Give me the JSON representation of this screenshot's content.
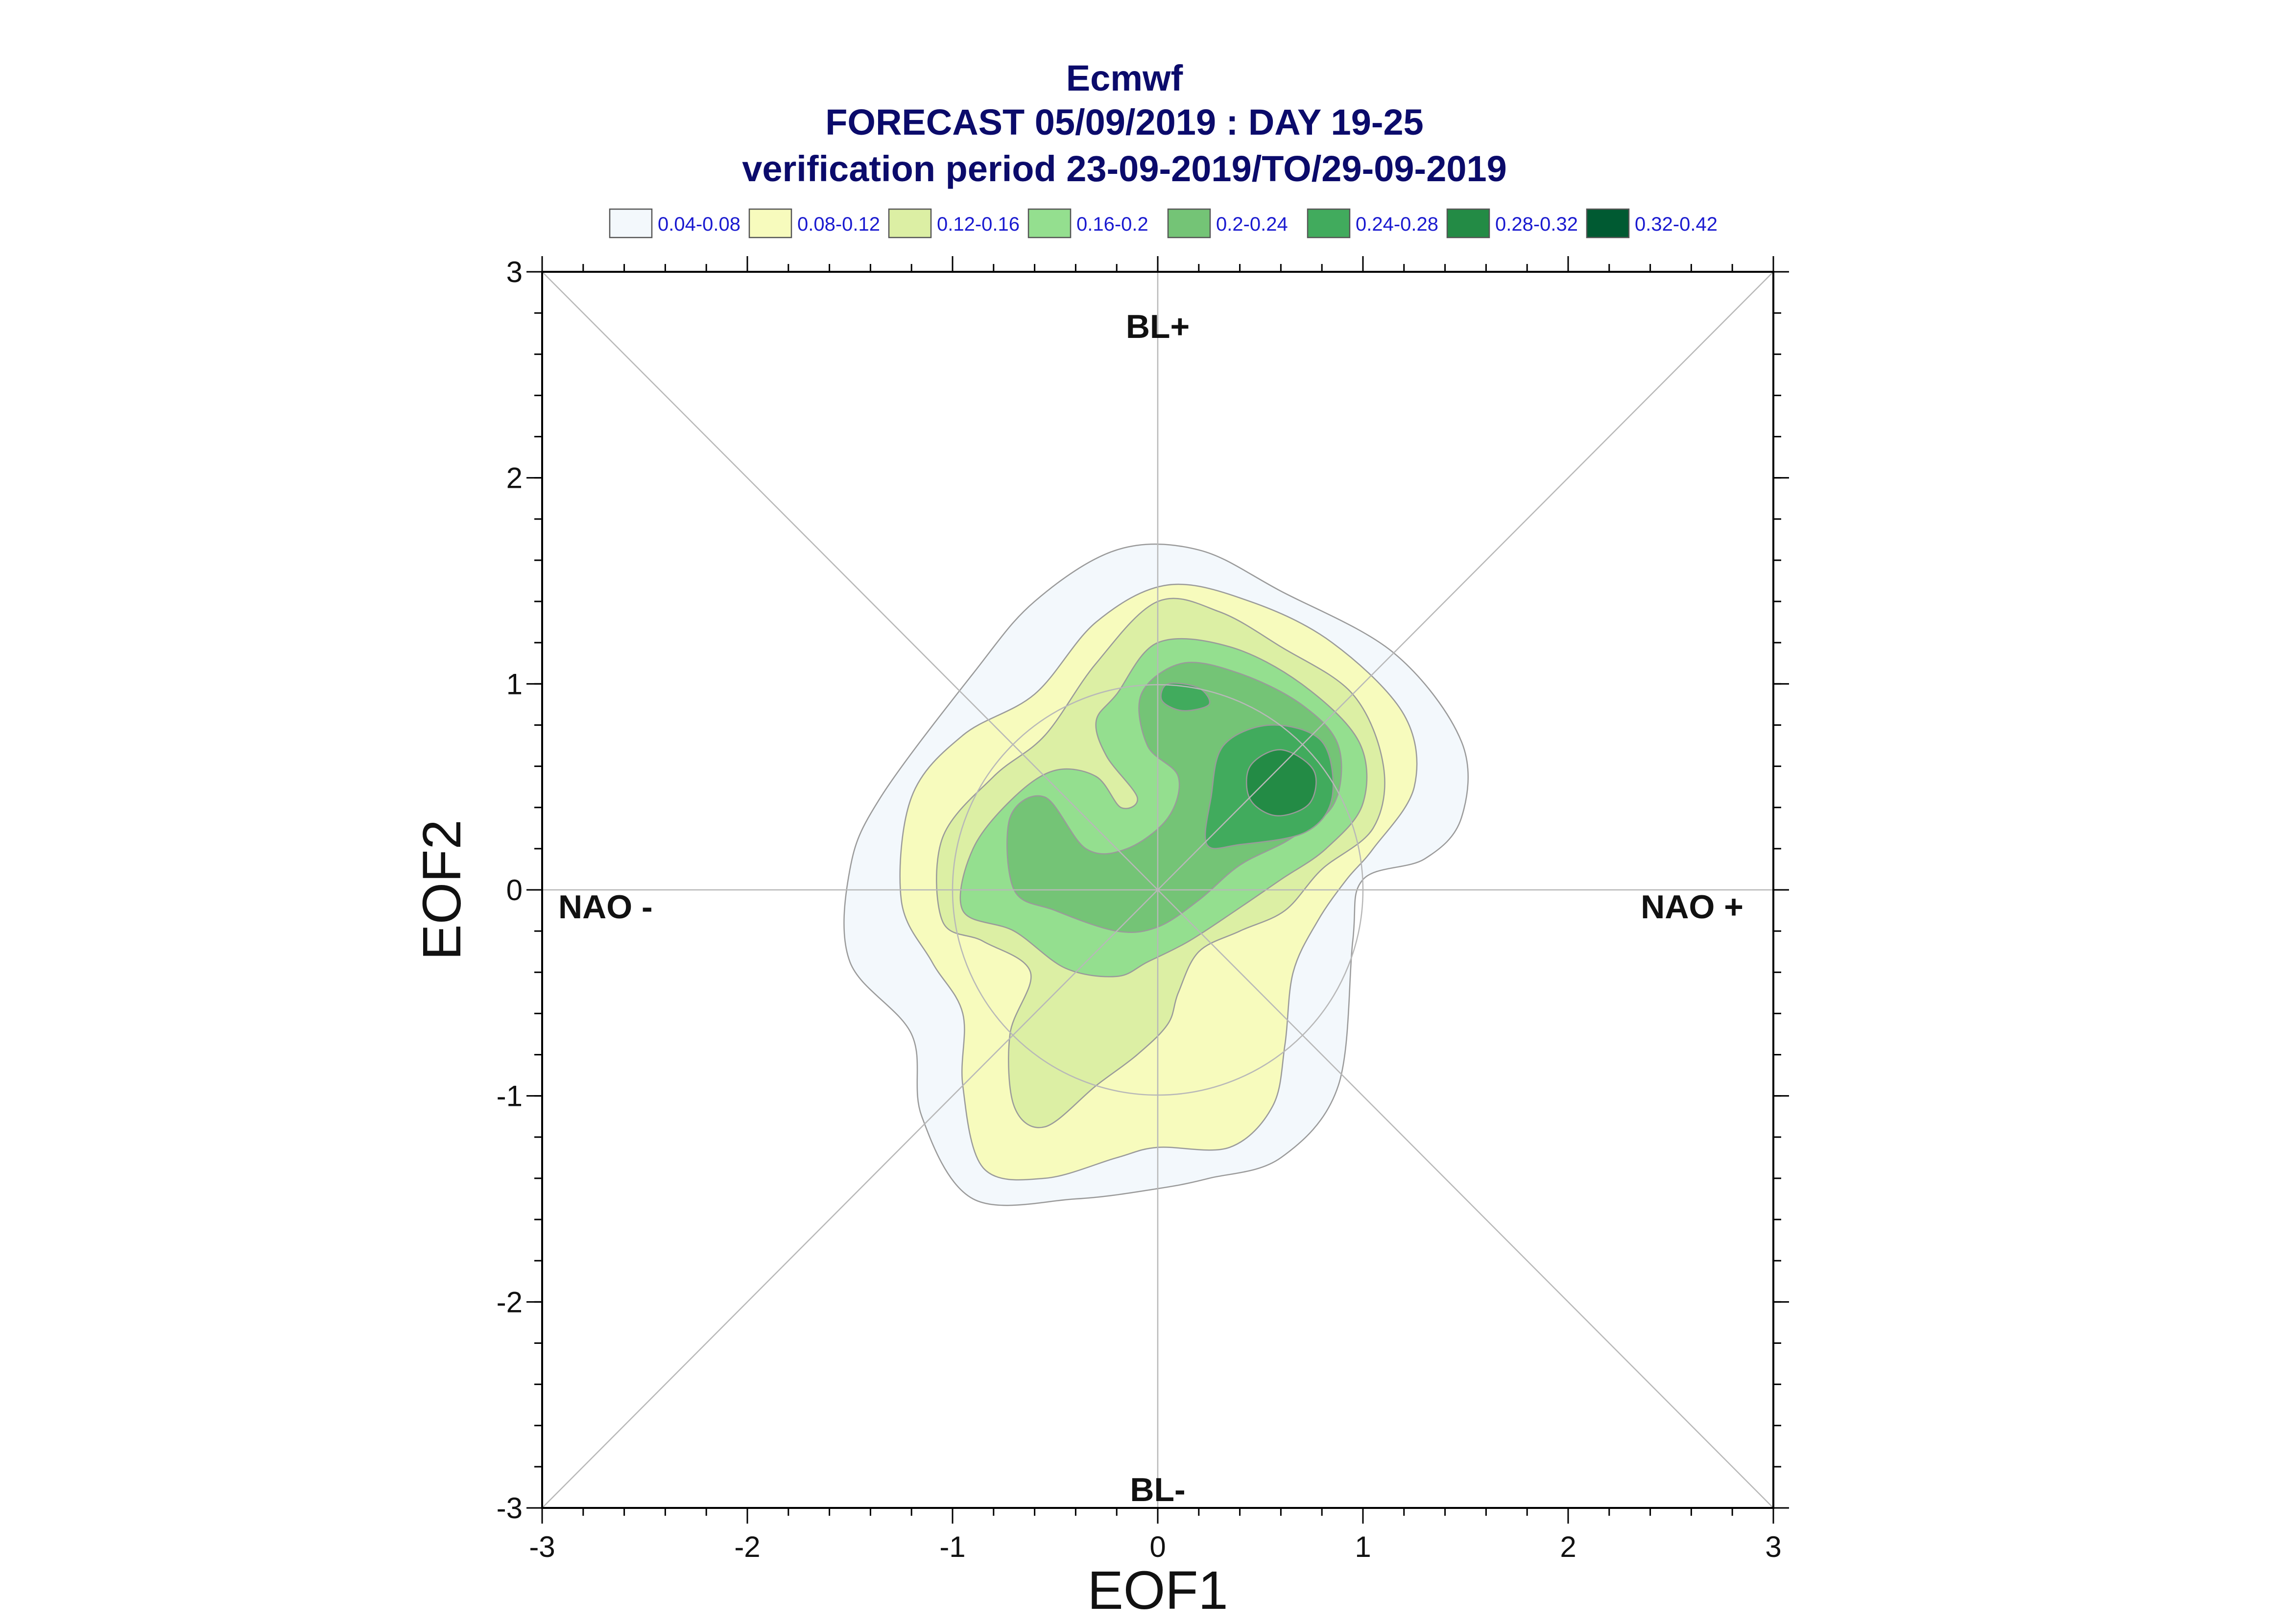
{
  "chart_data": {
    "type": "contour",
    "title": "Ecmwf",
    "subtitle_lines": [
      "FORECAST 05/09/2019 : DAY 19-25",
      "verification period 23-09-2019/TO/29-09-2019"
    ],
    "xlabel": "EOF1",
    "ylabel": "EOF2",
    "xlim": [
      -3,
      3
    ],
    "ylim": [
      -3,
      3
    ],
    "x_ticks": [
      "-3",
      "-2",
      "-1",
      "0",
      "1",
      "2",
      "3"
    ],
    "y_ticks": [
      "-3",
      "-2",
      "-1",
      "0",
      "1",
      "2",
      "3"
    ],
    "grid": false,
    "legend_position": "top",
    "region_labels": {
      "top": "BL+",
      "bottom": "BL-",
      "left": "NAO -",
      "right": "NAO +"
    },
    "reference_circle_radius": 1,
    "levels": [
      {
        "label": "0.04-0.08",
        "color": "#f3f8fc"
      },
      {
        "label": "0.08-0.12",
        "color": "#f7fbbd"
      },
      {
        "label": "0.12-0.16",
        "color": "#dcefa4"
      },
      {
        "label": "0.16-0.2",
        "color": "#94df8f"
      },
      {
        "label": "0.2-0.24",
        "color": "#74c476"
      },
      {
        "label": "0.24-0.28",
        "color": "#41ab5d"
      },
      {
        "label": "0.28-0.32",
        "color": "#238b45"
      },
      {
        "label": "0.32-0.42",
        "color": "#005a32"
      }
    ],
    "contours": [
      {
        "level": 0,
        "points": [
          [
            -0.9,
            1.05
          ],
          [
            -0.6,
            1.4
          ],
          [
            -0.2,
            1.65
          ],
          [
            0.2,
            1.65
          ],
          [
            0.6,
            1.45
          ],
          [
            1.15,
            1.15
          ],
          [
            1.48,
            0.72
          ],
          [
            1.48,
            0.35
          ],
          [
            1.3,
            0.15
          ],
          [
            1.0,
            0.05
          ],
          [
            0.95,
            -0.25
          ],
          [
            0.88,
            -0.95
          ],
          [
            0.6,
            -1.3
          ],
          [
            0.25,
            -1.4
          ],
          [
            0.0,
            -1.45
          ],
          [
            -0.4,
            -1.5
          ],
          [
            -0.9,
            -1.5
          ],
          [
            -1.15,
            -1.1
          ],
          [
            -1.2,
            -0.7
          ],
          [
            -1.5,
            -0.35
          ],
          [
            -1.5,
            0.1
          ],
          [
            -1.35,
            0.45
          ]
        ]
      },
      {
        "level": 1,
        "points": [
          [
            -0.6,
            0.95
          ],
          [
            -0.3,
            1.3
          ],
          [
            0.05,
            1.48
          ],
          [
            0.45,
            1.4
          ],
          [
            0.85,
            1.2
          ],
          [
            1.2,
            0.85
          ],
          [
            1.25,
            0.5
          ],
          [
            1.05,
            0.2
          ],
          [
            0.92,
            0.05
          ],
          [
            0.78,
            -0.15
          ],
          [
            0.66,
            -0.4
          ],
          [
            0.62,
            -0.75
          ],
          [
            0.56,
            -1.05
          ],
          [
            0.35,
            -1.25
          ],
          [
            0.0,
            -1.25
          ],
          [
            -0.2,
            -1.3
          ],
          [
            -0.55,
            -1.4
          ],
          [
            -0.85,
            -1.35
          ],
          [
            -0.95,
            -0.95
          ],
          [
            -0.95,
            -0.6
          ],
          [
            -1.1,
            -0.35
          ],
          [
            -1.25,
            -0.05
          ],
          [
            -1.2,
            0.45
          ],
          [
            -0.95,
            0.75
          ]
        ]
      },
      {
        "level": 2,
        "points": [
          [
            -0.3,
            1.1
          ],
          [
            0.0,
            1.4
          ],
          [
            0.3,
            1.35
          ],
          [
            0.6,
            1.18
          ],
          [
            0.95,
            0.95
          ],
          [
            1.1,
            0.6
          ],
          [
            1.05,
            0.3
          ],
          [
            0.8,
            0.1
          ],
          [
            0.62,
            -0.1
          ],
          [
            0.4,
            -0.2
          ],
          [
            0.2,
            -0.3
          ],
          [
            0.1,
            -0.5
          ],
          [
            0.05,
            -0.65
          ],
          [
            -0.1,
            -0.8
          ],
          [
            -0.3,
            -0.95
          ],
          [
            -0.55,
            -1.15
          ],
          [
            -0.7,
            -1.05
          ],
          [
            -0.72,
            -0.7
          ],
          [
            -0.62,
            -0.4
          ],
          [
            -0.85,
            -0.25
          ],
          [
            -1.05,
            -0.15
          ],
          [
            -1.05,
            0.25
          ],
          [
            -0.8,
            0.55
          ],
          [
            -0.55,
            0.75
          ]
        ]
      },
      {
        "level": 3,
        "points": [
          [
            -0.2,
            0.95
          ],
          [
            0.0,
            1.2
          ],
          [
            0.35,
            1.18
          ],
          [
            0.7,
            1.0
          ],
          [
            0.98,
            0.72
          ],
          [
            1.0,
            0.42
          ],
          [
            0.82,
            0.2
          ],
          [
            0.6,
            0.05
          ],
          [
            0.38,
            -0.1
          ],
          [
            0.15,
            -0.25
          ],
          [
            -0.05,
            -0.35
          ],
          [
            -0.2,
            -0.42
          ],
          [
            -0.45,
            -0.38
          ],
          [
            -0.7,
            -0.2
          ],
          [
            -0.95,
            -0.1
          ],
          [
            -0.9,
            0.2
          ],
          [
            -0.7,
            0.45
          ],
          [
            -0.5,
            0.58
          ],
          [
            -0.3,
            0.55
          ],
          [
            -0.18,
            0.4
          ],
          [
            -0.1,
            0.45
          ],
          [
            -0.25,
            0.65
          ],
          [
            -0.3,
            0.82
          ]
        ]
      },
      {
        "level": 4,
        "points": [
          [
            -0.08,
            0.95
          ],
          [
            0.12,
            1.1
          ],
          [
            0.4,
            1.05
          ],
          [
            0.7,
            0.9
          ],
          [
            0.88,
            0.7
          ],
          [
            0.86,
            0.42
          ],
          [
            0.65,
            0.25
          ],
          [
            0.4,
            0.12
          ],
          [
            0.2,
            -0.05
          ],
          [
            0.0,
            -0.18
          ],
          [
            -0.2,
            -0.2
          ],
          [
            -0.5,
            -0.1
          ],
          [
            -0.7,
            0.0
          ],
          [
            -0.72,
            0.35
          ],
          [
            -0.55,
            0.45
          ],
          [
            -0.35,
            0.2
          ],
          [
            -0.15,
            0.2
          ],
          [
            0.05,
            0.35
          ],
          [
            0.1,
            0.55
          ],
          [
            -0.05,
            0.7
          ]
        ]
      },
      {
        "level": 5,
        "points": [
          [
            0.32,
            0.7
          ],
          [
            0.55,
            0.8
          ],
          [
            0.8,
            0.72
          ],
          [
            0.85,
            0.45
          ],
          [
            0.72,
            0.28
          ],
          [
            0.4,
            0.22
          ],
          [
            0.24,
            0.22
          ],
          [
            0.26,
            0.45
          ]
        ]
      },
      {
        "level": 5,
        "points": [
          [
            0.05,
            1.0
          ],
          [
            0.2,
            0.98
          ],
          [
            0.25,
            0.9
          ],
          [
            0.12,
            0.87
          ],
          [
            0.02,
            0.92
          ]
        ]
      },
      {
        "level": 6,
        "points": [
          [
            0.45,
            0.6
          ],
          [
            0.6,
            0.68
          ],
          [
            0.76,
            0.58
          ],
          [
            0.74,
            0.42
          ],
          [
            0.58,
            0.36
          ],
          [
            0.45,
            0.44
          ]
        ]
      }
    ]
  }
}
